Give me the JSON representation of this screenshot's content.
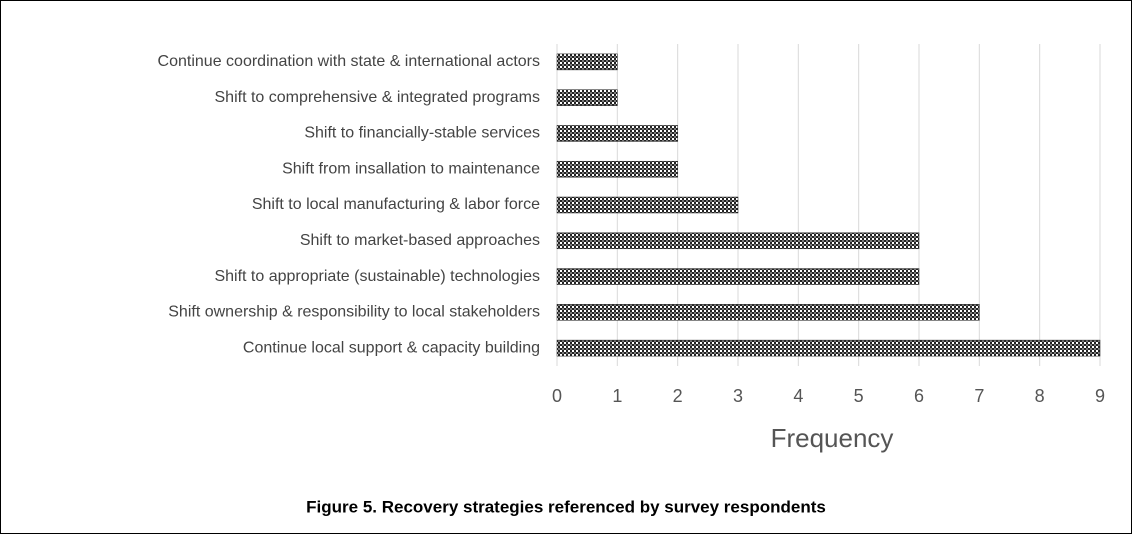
{
  "chart_data": {
    "type": "bar",
    "orientation": "horizontal",
    "caption": "Figure 5. Recovery strategies referenced by survey respondents",
    "x_label": "Frequency",
    "categories": [
      "Continue coordination with state & international actors",
      "Shift to comprehensive & integrated programs",
      "Shift to financially-stable services",
      "Shift from insallation to maintenance",
      "Shift to local manufacturing & labor force",
      "Shift to market-based approaches",
      "Shift to appropriate (sustainable) technologies",
      "Shift ownership & responsibility to local stakeholders",
      "Continue local support & capacity building"
    ],
    "values": [
      1,
      1,
      2,
      2,
      3,
      6,
      6,
      7,
      9
    ],
    "color": "#222222",
    "xlim": [
      0,
      9
    ],
    "xticks": [
      0,
      1,
      2,
      3,
      4,
      5,
      6,
      7,
      8,
      9
    ],
    "grid": true
  }
}
